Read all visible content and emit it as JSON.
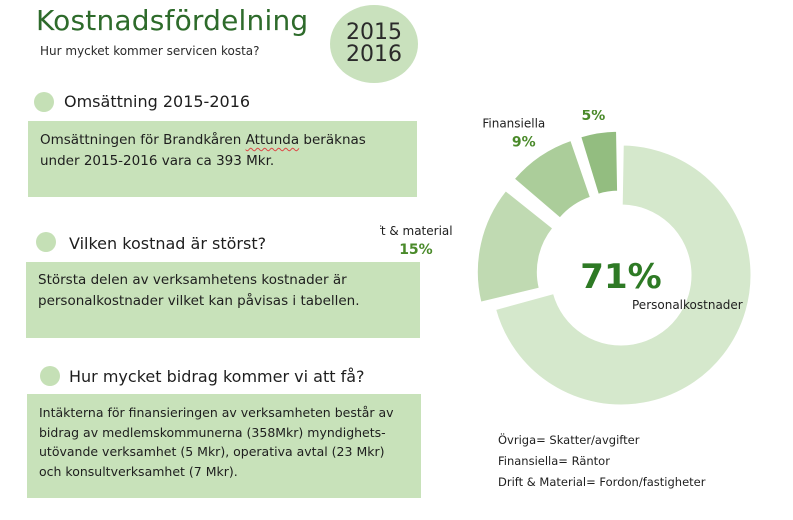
{
  "header": {
    "title": "Kostnadsfördelning",
    "subtitle": "Hur mycket kommer servicen kosta?",
    "year_line1": "2015",
    "year_line2": "2016"
  },
  "sections": [
    {
      "heading": "Omsättning 2015-2016",
      "text_before": "Omsättningen för Brandkåren ",
      "text_underlined": "Attunda",
      "text_after": " beräknas under 2015-2016 vara ca 393 Mkr."
    },
    {
      "heading": "Vilken kostnad är störst?",
      "text": "Största delen av verksamhetens kostnader är personalkostnader vilket kan påvisas i tabellen."
    },
    {
      "heading": "Hur mycket bidrag kommer vi att få?",
      "text": "Intäkterna för finansieringen av verksamheten består av bidrag av medlemskommunerna (358Mkr) myndighets-utövande verksamhet (5 Mkr), operativa avtal (23 Mkr) och konsultverksamhet (7 Mkr)."
    }
  ],
  "colors": {
    "title": "#2e6b2b",
    "box_bg": "#c8e2ba",
    "bullet": "#c5e0b6",
    "value_label": "#4a8a2a"
  },
  "chart_data": {
    "type": "pie",
    "style": "exploded-donut",
    "title": "",
    "series": [
      {
        "name": "Personalkostnader",
        "value": 71,
        "label": "71%",
        "color": "#d5e8cc"
      },
      {
        "name": "Drift & material",
        "value": 15,
        "label": "15%",
        "color": "#c0dab2"
      },
      {
        "name": "Finansiella",
        "value": 9,
        "label": "9%",
        "color": "#abcd9a"
      },
      {
        "name": "Övriga",
        "value": 5,
        "label": "5%",
        "color": "#93bd80"
      }
    ]
  },
  "legend": [
    "Övriga= Skatter/avgifter",
    "Finansiella= Räntor",
    "Drift & Material= Fordon/fastigheter"
  ]
}
